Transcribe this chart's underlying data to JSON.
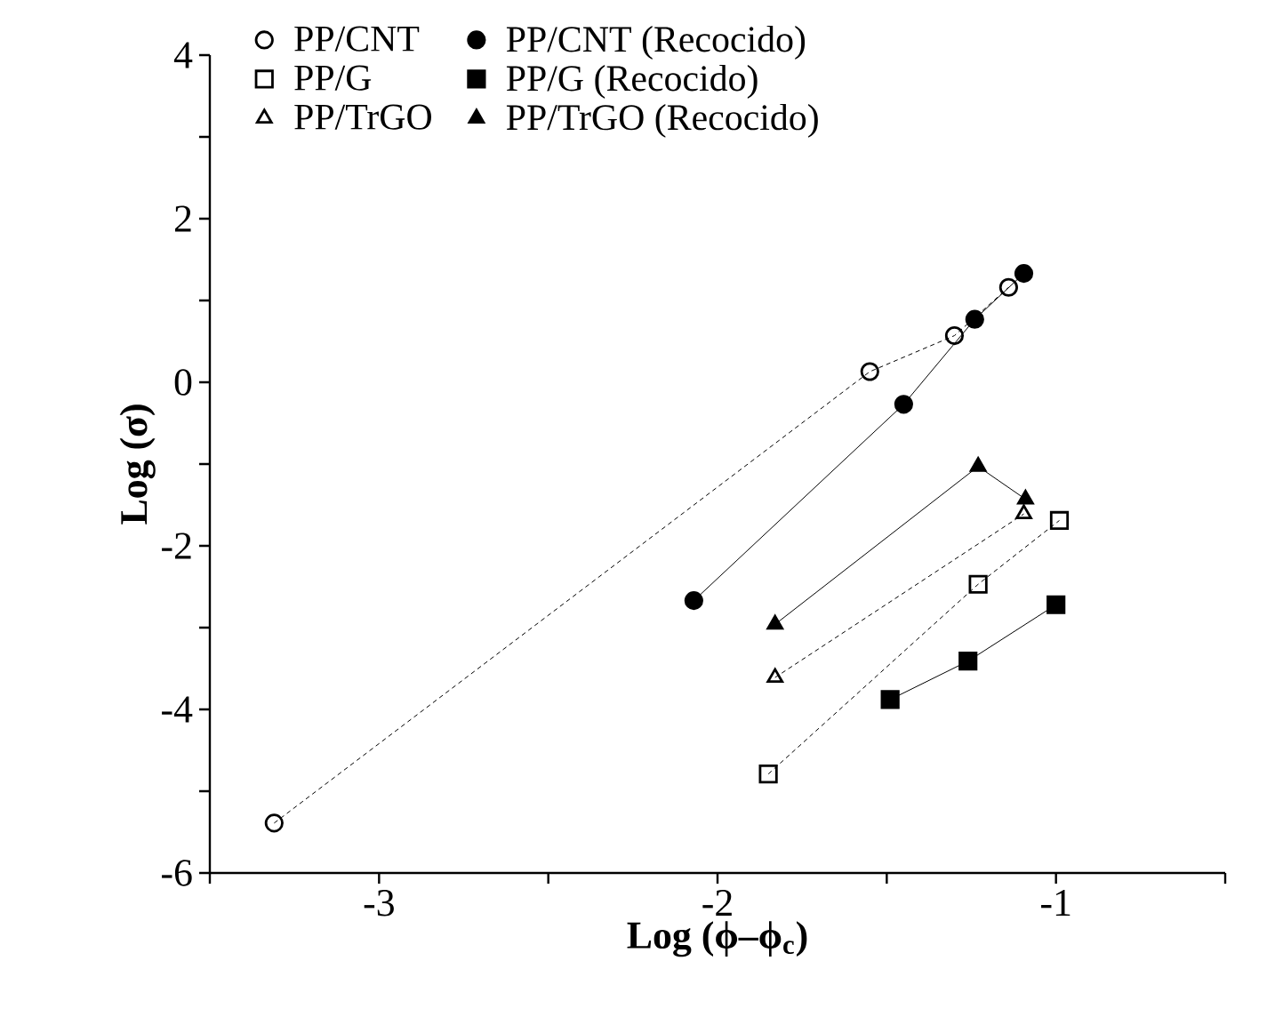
{
  "chart_data": {
    "type": "line",
    "xlabel": "Log (ϕ–ϕ$_{c}$)",
    "ylabel": "Log (σ)",
    "xlim": [
      -3.5,
      -0.5
    ],
    "ylim": [
      -6,
      4
    ],
    "xticks": [
      {
        "value": -3.5,
        "label": null
      },
      -3,
      {
        "value": -2.5,
        "label": null
      },
      -2,
      {
        "value": -1.5,
        "label": null
      },
      -1,
      {
        "value": -0.5,
        "label": null
      }
    ],
    "yticks": [
      -6,
      {
        "value": -5,
        "label": null
      },
      -4,
      {
        "value": -3,
        "label": null
      },
      -2,
      {
        "value": -1,
        "label": null
      },
      0,
      {
        "value": 1,
        "label": null
      },
      2,
      {
        "value": 3,
        "label": null
      },
      4
    ],
    "grid": false,
    "legend": "top left",
    "series": [
      {
        "name": "PP/CNT",
        "color": "#000000",
        "marker": "circle",
        "line_style": "dashed",
        "x": [
          -3.31,
          -1.55,
          -1.3,
          -1.14
        ],
        "values": [
          -5.39,
          0.13,
          0.57,
          1.16
        ]
      },
      {
        "name": "PP/CNT (Recocido)",
        "color": "#000000",
        "marker": "circle",
        "line_style": "solid",
        "x": [
          -2.07,
          -1.45,
          -1.24,
          -1.095
        ],
        "values": [
          -2.67,
          -0.27,
          0.77,
          1.33
        ]
      },
      {
        "name": "PP/G",
        "color": "#000000",
        "marker": "square",
        "line_style": "dashed",
        "x": [
          -1.85,
          -1.23,
          -0.99
        ],
        "values": [
          -4.79,
          -2.47,
          -1.69
        ]
      },
      {
        "name": "PP/G (Recocido)",
        "color": "#000000",
        "marker": "square",
        "line_style": "solid",
        "x": [
          -1.49,
          -1.26,
          -1.0
        ],
        "values": [
          -3.88,
          -3.41,
          -2.72
        ]
      },
      {
        "name": "PP/TrGO",
        "color": "#000000",
        "marker": "triangle",
        "line_style": "dashed",
        "x": [
          -1.83,
          -1.095
        ],
        "values": [
          -3.61,
          -1.61
        ]
      },
      {
        "name": "PP/TrGO (Recocido)",
        "color": "#000000",
        "marker": "triangle",
        "line_style": "solid",
        "x": [
          -1.83,
          -1.23,
          -1.09
        ],
        "values": [
          -2.96,
          -1.03,
          -1.43
        ]
      }
    ]
  }
}
